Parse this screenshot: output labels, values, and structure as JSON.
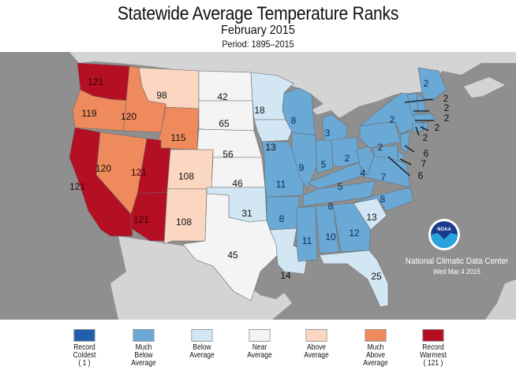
{
  "title": "Statewide Average Temperature Ranks",
  "subtitle": "February 2015",
  "period": "Period: 1895–2015",
  "credit": {
    "org": "National Climatic Data Center",
    "date": "Wed Mar  4 2015",
    "logo_text": "NOAA",
    "logo_icon": "noaa-logo-icon"
  },
  "colors": {
    "record_coldest": "#1f5fae",
    "much_below": "#6aa8d6",
    "below": "#d3e6f4",
    "near": "#f4f4f4",
    "above": "#fbd7c2",
    "much_above": "#ef8a5c",
    "record_warmest": "#b50f24",
    "ocean": "#8f8f8f",
    "land_other": "#d4d4d4"
  },
  "legend": [
    {
      "lines": [
        "Record",
        "Coldest",
        "( 1 )"
      ],
      "key": "record_coldest"
    },
    {
      "lines": [
        "Much",
        "Below",
        "Average"
      ],
      "key": "much_below"
    },
    {
      "lines": [
        "Below",
        "Average"
      ],
      "key": "below"
    },
    {
      "lines": [
        "Near",
        "Average"
      ],
      "key": "near"
    },
    {
      "lines": [
        "Above",
        "Average"
      ],
      "key": "above"
    },
    {
      "lines": [
        "Much",
        "Above",
        "Average"
      ],
      "key": "much_above"
    },
    {
      "lines": [
        "Record",
        "Warmest",
        "( 121 )"
      ],
      "key": "record_warmest"
    }
  ],
  "chart_data": {
    "type": "choropleth",
    "title": "Statewide Average Temperature Ranks",
    "subtitle": "February 2015",
    "period": "1895–2015",
    "scale": {
      "min_label": "Record Coldest (1)",
      "max_label": "Record Warmest (121)"
    },
    "states": [
      {
        "state": "WA",
        "rank": 121,
        "category": "record_warmest"
      },
      {
        "state": "OR",
        "rank": 119,
        "category": "much_above"
      },
      {
        "state": "CA",
        "rank": 121,
        "category": "record_warmest"
      },
      {
        "state": "ID",
        "rank": 120,
        "category": "much_above"
      },
      {
        "state": "NV",
        "rank": 120,
        "category": "much_above"
      },
      {
        "state": "MT",
        "rank": 98,
        "category": "above"
      },
      {
        "state": "WY",
        "rank": 115,
        "category": "much_above"
      },
      {
        "state": "UT",
        "rank": 121,
        "category": "record_warmest"
      },
      {
        "state": "AZ",
        "rank": 121,
        "category": "record_warmest"
      },
      {
        "state": "CO",
        "rank": 108,
        "category": "above"
      },
      {
        "state": "NM",
        "rank": 108,
        "category": "above"
      },
      {
        "state": "ND",
        "rank": 42,
        "category": "near"
      },
      {
        "state": "SD",
        "rank": 65,
        "category": "near"
      },
      {
        "state": "NE",
        "rank": 56,
        "category": "near"
      },
      {
        "state": "KS",
        "rank": 46,
        "category": "near"
      },
      {
        "state": "OK",
        "rank": 31,
        "category": "below"
      },
      {
        "state": "TX",
        "rank": 45,
        "category": "near"
      },
      {
        "state": "MN",
        "rank": 18,
        "category": "below"
      },
      {
        "state": "IA",
        "rank": 13,
        "category": "below"
      },
      {
        "state": "MO",
        "rank": 11,
        "category": "much_below"
      },
      {
        "state": "AR",
        "rank": 8,
        "category": "much_below"
      },
      {
        "state": "LA",
        "rank": 14,
        "category": "below"
      },
      {
        "state": "WI",
        "rank": 8,
        "category": "much_below"
      },
      {
        "state": "IL",
        "rank": 9,
        "category": "much_below"
      },
      {
        "state": "MI",
        "rank": 3,
        "category": "much_below"
      },
      {
        "state": "IN",
        "rank": 5,
        "category": "much_below"
      },
      {
        "state": "OH",
        "rank": 2,
        "category": "much_below"
      },
      {
        "state": "KY",
        "rank": 5,
        "category": "much_below"
      },
      {
        "state": "TN",
        "rank": 8,
        "category": "much_below"
      },
      {
        "state": "MS",
        "rank": 11,
        "category": "much_below"
      },
      {
        "state": "AL",
        "rank": 10,
        "category": "much_below"
      },
      {
        "state": "GA",
        "rank": 12,
        "category": "much_below"
      },
      {
        "state": "FL",
        "rank": 25,
        "category": "below"
      },
      {
        "state": "SC",
        "rank": 13,
        "category": "below"
      },
      {
        "state": "NC",
        "rank": 8,
        "category": "much_below"
      },
      {
        "state": "VA",
        "rank": 7,
        "category": "much_below"
      },
      {
        "state": "WV",
        "rank": 4,
        "category": "much_below"
      },
      {
        "state": "PA",
        "rank": 2,
        "category": "much_below"
      },
      {
        "state": "NY",
        "rank": 2,
        "category": "much_below"
      },
      {
        "state": "ME",
        "rank": 2,
        "category": "much_below"
      },
      {
        "state": "VT",
        "rank": 2,
        "category": "much_below"
      },
      {
        "state": "NH",
        "rank": 2,
        "category": "much_below"
      },
      {
        "state": "MA",
        "rank": 2,
        "category": "much_below"
      },
      {
        "state": "CT",
        "rank": 2,
        "category": "much_below"
      },
      {
        "state": "RI",
        "rank": 2,
        "category": "much_below"
      },
      {
        "state": "NJ",
        "rank": 6,
        "category": "much_below"
      },
      {
        "state": "DE",
        "rank": 7,
        "category": "much_below"
      },
      {
        "state": "MD",
        "rank": 6,
        "category": "much_below"
      }
    ]
  }
}
